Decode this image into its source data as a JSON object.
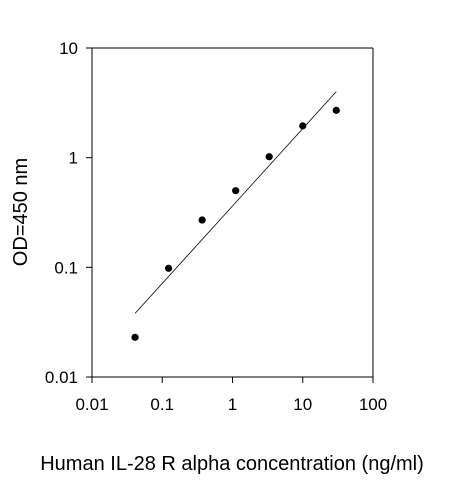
{
  "chart_data": {
    "type": "scatter",
    "title": "",
    "xlabel": "Human IL-28 R alpha concentration (ng/ml)",
    "ylabel": "OD=450 nm",
    "x_scale": "log",
    "y_scale": "log",
    "xlim": [
      0.01,
      100
    ],
    "ylim": [
      0.01,
      10
    ],
    "x_ticks": [
      0.01,
      0.1,
      1,
      10,
      100
    ],
    "x_tick_labels": [
      "0.01",
      "0.1",
      "1",
      "10",
      "100"
    ],
    "y_ticks": [
      0.01,
      0.1,
      1,
      10
    ],
    "y_tick_labels": [
      "0.01",
      "0.1",
      "1",
      "10"
    ],
    "grid": false,
    "legend": "none",
    "series": [
      {
        "points": [
          {
            "x": 0.041,
            "y": 0.023
          },
          {
            "x": 0.123,
            "y": 0.098
          },
          {
            "x": 0.37,
            "y": 0.27
          },
          {
            "x": 1.11,
            "y": 0.5
          },
          {
            "x": 3.33,
            "y": 1.02
          },
          {
            "x": 10,
            "y": 1.95
          },
          {
            "x": 30,
            "y": 2.7
          }
        ]
      }
    ],
    "fit_line": {
      "x": [
        0.041,
        30
      ],
      "y": [
        0.038,
        4.0
      ]
    }
  }
}
